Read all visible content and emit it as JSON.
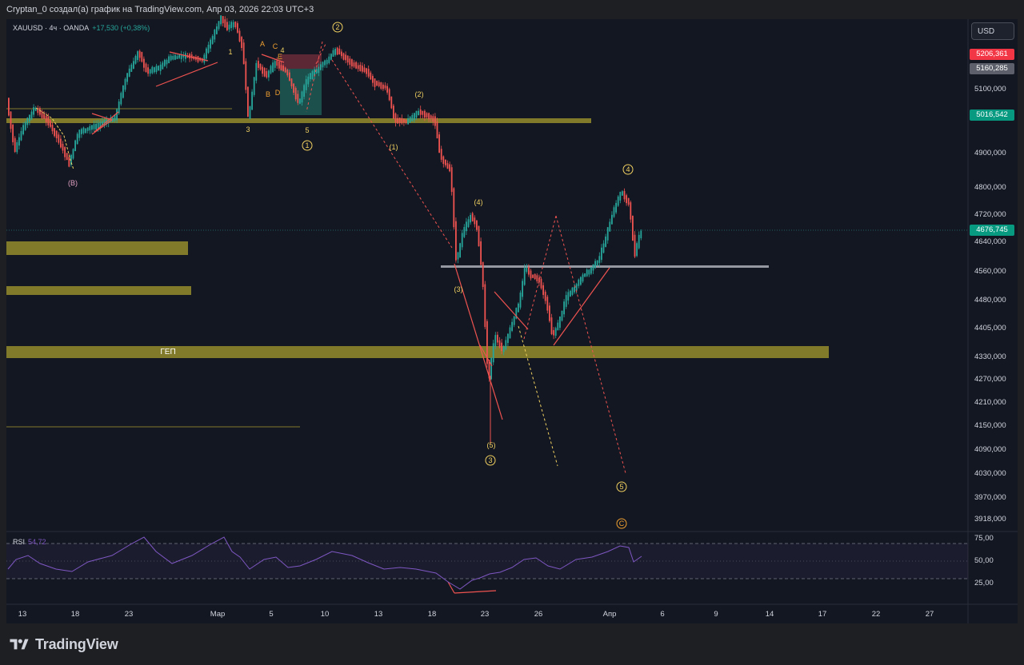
{
  "window": {
    "title": "Cryptan_0 создал(а) график на TradingView.com, Апр 03, 2026 22:03 UTC+3"
  },
  "legend": {
    "symbol": "XAUUSD · 4ч · OANDA",
    "change": "+17,530 (+0,38%)"
  },
  "currency_button": "USD",
  "price_axis": {
    "labels": [
      "5100,000",
      "4900,000",
      "4800,000",
      "4720,000",
      "4640,000",
      "4560,000",
      "4480,000",
      "4405,000",
      "4330,000",
      "4270,000",
      "4210,000",
      "4150,000",
      "4090,000",
      "4030,000",
      "3970,000",
      "3918,000"
    ]
  },
  "price_tags": {
    "high": {
      "text": "5206,361",
      "color": "#f23645"
    },
    "gray": {
      "text": "5160,285",
      "color": "#5d606b"
    },
    "level": {
      "text": "5016,542",
      "color": "#089981"
    },
    "current": {
      "text": "4676,745",
      "color": "#089981"
    }
  },
  "rsi": {
    "name": "RSI",
    "value": "54,72",
    "labels": [
      "75,00",
      "50,00",
      "25,00"
    ],
    "color": "#7e57c2"
  },
  "time_axis": {
    "labels": [
      "13",
      "18",
      "23",
      "Мар",
      "5",
      "10",
      "13",
      "18",
      "23",
      "26",
      "Апр",
      "6",
      "9",
      "14",
      "17",
      "22",
      "27"
    ]
  },
  "annotations": {
    "gap_label": "ГЕП",
    "wave_labels": [
      "(B)",
      "1",
      "3",
      "5",
      "A",
      "C",
      "4",
      "E",
      "B",
      "D",
      "(1)",
      "(2)",
      "(3)",
      "(4)",
      "(5)"
    ],
    "circled": [
      "1",
      "2",
      "3",
      "4",
      "5",
      "C"
    ]
  },
  "colors": {
    "background": "#131722",
    "up": "#26a69a",
    "down": "#ef5350",
    "zone": "#807a2a",
    "wave_label": "#f0d060"
  },
  "footer": {
    "brand": "TradingView"
  }
}
